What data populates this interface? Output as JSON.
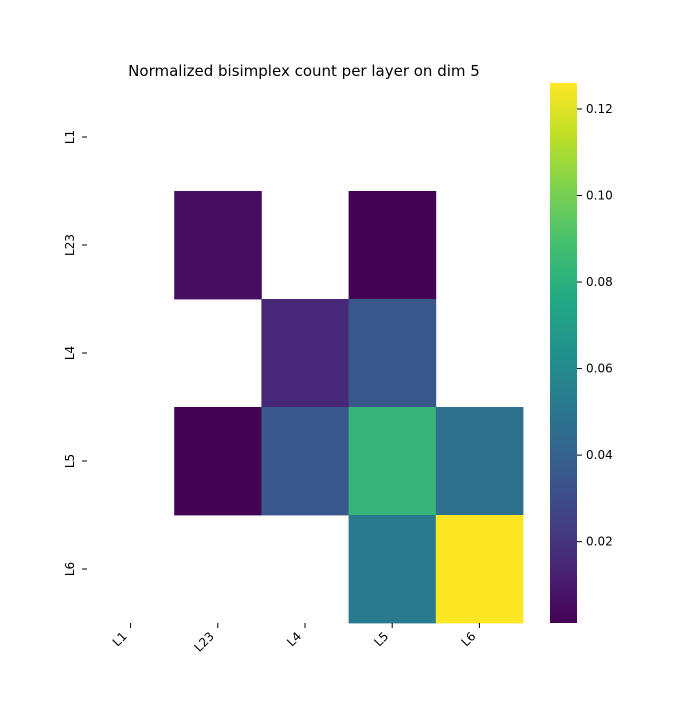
{
  "chart_data": {
    "type": "heatmap",
    "title": "Normalized bisimplex count per layer on dim 5",
    "xlabel": "",
    "ylabel": "",
    "x_categories": [
      "L1",
      "L23",
      "L4",
      "L5",
      "L6"
    ],
    "y_categories": [
      "L1",
      "L23",
      "L4",
      "L5",
      "L6"
    ],
    "values": [
      [
        null,
        null,
        null,
        null,
        null
      ],
      [
        null,
        0.006,
        null,
        0.0015,
        null
      ],
      [
        null,
        null,
        0.015,
        0.035,
        null
      ],
      [
        null,
        0.0015,
        0.035,
        0.083,
        0.047
      ],
      [
        null,
        null,
        null,
        0.052,
        0.126
      ]
    ],
    "colormap": "viridis",
    "colorbar": {
      "min": 0.0012,
      "max": 0.126,
      "ticks": [
        0.02,
        0.04,
        0.06,
        0.08,
        0.1,
        0.12
      ],
      "tick_labels": [
        "0.02",
        "0.04",
        "0.06",
        "0.08",
        "0.10",
        "0.12"
      ]
    },
    "missing_color": "#ffffff",
    "tick_color": "#000000"
  }
}
